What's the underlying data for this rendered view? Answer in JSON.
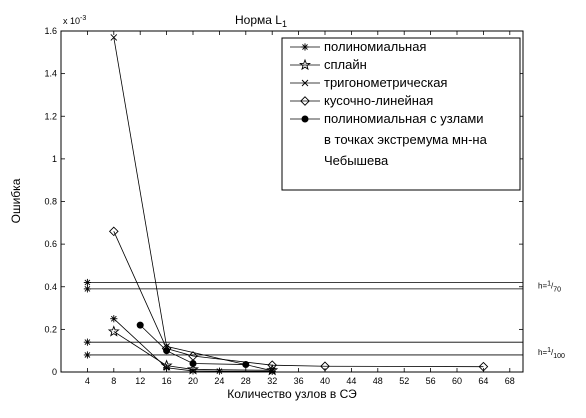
{
  "chart_data": {
    "type": "line",
    "title": "Норма L",
    "title_sub": "1",
    "xlabel": "Количество узлов в СЭ",
    "ylabel": "Ошибка",
    "y_exponent": "x 10",
    "y_exponent_power": "-3",
    "xlim": [
      0,
      70
    ],
    "ylim": [
      0,
      1.6
    ],
    "xticks": [
      4,
      8,
      12,
      16,
      20,
      24,
      28,
      32,
      36,
      40,
      44,
      48,
      52,
      56,
      60,
      64,
      68
    ],
    "yticks": [
      0,
      0.2,
      0.4,
      0.6,
      0.8,
      1,
      1.2,
      1.4,
      1.6
    ],
    "grid": false,
    "legend_position": "top-right",
    "series": [
      {
        "name": "полиномиальная",
        "marker": "asterisk",
        "x": [
          8,
          16,
          20,
          24,
          32
        ],
        "y": [
          0.25,
          0.02,
          0.005,
          0.004,
          0.003
        ]
      },
      {
        "name": "сплайн",
        "marker": "star",
        "x": [
          8,
          16,
          20,
          32
        ],
        "y": [
          0.19,
          0.03,
          0.012,
          0.008
        ]
      },
      {
        "name": "тригонометрическая",
        "marker": "x",
        "x": [
          8,
          16,
          32
        ],
        "y": [
          1.57,
          0.12,
          0.006
        ]
      },
      {
        "name": "кусочно-линейная",
        "marker": "diamond",
        "x": [
          8,
          16,
          20,
          32,
          40,
          64
        ],
        "y": [
          0.66,
          0.11,
          0.075,
          0.032,
          0.027,
          0.025
        ]
      },
      {
        "name": "полиномиальная с узлами в точках экстремума мн-на Чебышева",
        "legend_lines": [
          "полиномиальная с узлами",
          "в точках экстремума мн-на",
          "Чебышева"
        ],
        "marker": "dot",
        "x": [
          12,
          16,
          20,
          28
        ],
        "y": [
          0.22,
          0.1,
          0.04,
          0.035
        ]
      }
    ],
    "horizontal_lines": [
      {
        "y": 0.42,
        "label": ""
      },
      {
        "y": 0.39,
        "label": "h=1/70"
      },
      {
        "y": 0.14,
        "label": ""
      },
      {
        "y": 0.08,
        "label": "h=1/100"
      }
    ],
    "h_label_groups": [
      {
        "text": "h=",
        "num": "1",
        "den": "70",
        "y": 0.405
      },
      {
        "text": "h=",
        "num": "1",
        "den": "100",
        "y": 0.095
      }
    ],
    "ref_markers": [
      {
        "x": 4,
        "y": 0.42,
        "marker": "asterisk"
      },
      {
        "x": 4,
        "y": 0.39,
        "marker": "asterisk"
      },
      {
        "x": 4,
        "y": 0.14,
        "marker": "asterisk"
      },
      {
        "x": 4,
        "y": 0.08,
        "marker": "asterisk"
      }
    ]
  }
}
